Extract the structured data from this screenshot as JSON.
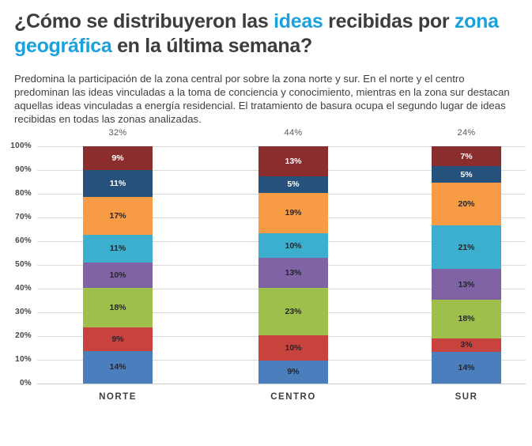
{
  "header": {
    "title_pre": "¿Cómo se distribuyeron las ",
    "title_highlight_1": "ideas",
    "title_mid": " recibidas por ",
    "title_highlight_2": "zona geográfica",
    "title_post": " en la última semana?",
    "accent_color": "#1ba1dc",
    "title_color": "#3d3d3d"
  },
  "intro": {
    "text": "Predomina la participación de la zona central por sobre la zona norte y sur. En el norte y el centro predominan las ideas vinculadas a la toma de conciencia y conocimiento, mientras en la zona sur destacan aquellas ideas vinculadas a energía residencial. El tratamiento de basura ocupa el segundo lugar de ideas recibidas en todas las zonas analizadas."
  },
  "chart_data": {
    "type": "bar",
    "stacked": true,
    "title": "",
    "xlabel": "",
    "ylabel": "",
    "ylim": [
      0,
      100
    ],
    "grid": true,
    "value_suffix": "%",
    "categories": [
      "NORTE",
      "CENTRO",
      "SUR"
    ],
    "totals": [
      "32%",
      "44%",
      "24%"
    ],
    "y_ticks": [
      "100%",
      "90%",
      "80%",
      "70%",
      "60%",
      "50%",
      "40%",
      "30%",
      "20%",
      "10%",
      "0%"
    ],
    "series": [
      {
        "name": "segment-blue",
        "color": "#4a7ebd",
        "label_color": "#26262b",
        "values": [
          14,
          9,
          14
        ]
      },
      {
        "name": "segment-red",
        "color": "#c9433e",
        "label_color": "#26262b",
        "values": [
          9,
          10,
          3
        ]
      },
      {
        "name": "segment-green",
        "color": "#9fbf4d",
        "label_color": "#26262b",
        "values": [
          18,
          23,
          18
        ]
      },
      {
        "name": "segment-purple",
        "color": "#7f63a5",
        "label_color": "#26262b",
        "values": [
          10,
          13,
          13
        ]
      },
      {
        "name": "segment-cyan",
        "color": "#3bafcd",
        "label_color": "#26262b",
        "values": [
          11,
          10,
          21
        ]
      },
      {
        "name": "segment-orange",
        "color": "#f89b45",
        "label_color": "#26262b",
        "values": [
          17,
          19,
          20
        ]
      },
      {
        "name": "segment-navy",
        "color": "#27517d",
        "label_color": "#ffffff",
        "values": [
          11,
          5,
          5
        ]
      },
      {
        "name": "segment-maroon",
        "color": "#8c2d2d",
        "label_color": "#ffffff",
        "values": [
          9,
          13,
          7
        ]
      }
    ]
  }
}
